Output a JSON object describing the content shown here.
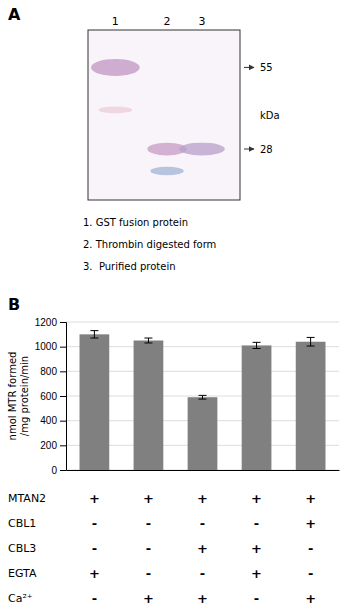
{
  "chart_data": [
    {
      "type": "gel",
      "title": "A",
      "categories": [
        "1",
        "2",
        "3"
      ],
      "colors": [
        "#c8a0c8",
        "#e8c0c8",
        "#c8a0c8",
        "#a8b8d8",
        "#b8a0c8"
      ],
      "annotations": [
        [
          "55",
          "kDa",
          "28"
        ],
        [
          "1. GST fusion protein",
          "2. Thrombin digested form",
          "3.  Purified protein"
        ]
      ]
    },
    {
      "type": "bar",
      "title": "B",
      "categories": [
        null,
        null,
        null,
        null,
        null
      ],
      "values": [
        1100,
        1050,
        590,
        1010,
        1040
      ],
      "errors": [
        30,
        20,
        15,
        25,
        35
      ],
      "color": "#808080",
      "y_label": [
        "nmol MTR formed",
        "/mg protein/min"
      ],
      "ylim": [
        0,
        1200
      ],
      "yticks": [
        0,
        200,
        400,
        600,
        800,
        1000,
        1200
      ],
      "grid": true,
      "table": {
        "row_labels": [
          "MTAN2",
          "CBL1",
          "CBL3",
          "EGTA",
          "Ca²⁺"
        ],
        "cells": [
          [
            "+",
            "+",
            "+",
            "+",
            "+"
          ],
          [
            "-",
            "-",
            "-",
            "-",
            "+"
          ],
          [
            "-",
            "-",
            "+",
            "+",
            "-"
          ],
          [
            "+",
            "-",
            "-",
            "+",
            "-"
          ],
          [
            "-",
            "+",
            "+",
            "-",
            "+"
          ]
        ]
      }
    }
  ]
}
